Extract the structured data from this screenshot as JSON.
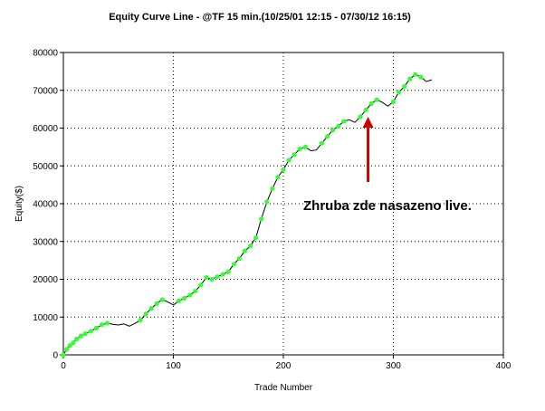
{
  "chart_data": {
    "type": "line",
    "title": "Equity Curve Line - @TF 15 min.(10/25/01 12:15 - 07/30/12 16:15)",
    "xlabel": "Trade Number",
    "ylabel": "Equity($)",
    "xlim": [
      0,
      400
    ],
    "ylim": [
      0,
      80000
    ],
    "x_ticks": [
      0,
      100,
      200,
      300,
      400
    ],
    "y_ticks": [
      0,
      10000,
      20000,
      30000,
      40000,
      50000,
      60000,
      70000,
      80000
    ],
    "x_tick_labels": [
      "0",
      "100",
      "200",
      "300",
      "400"
    ],
    "y_tick_labels": [
      "0",
      "10000",
      "20000",
      "30000",
      "40000",
      "50000",
      "60000",
      "70000",
      "80000"
    ],
    "grid": true,
    "line_color": "#000000",
    "marker_color": "#33ff33",
    "annotation": {
      "text": "Zhruba zde nasazeno live.",
      "arrow_color": "#cc0000",
      "points_to": {
        "x": 277,
        "y": 63000
      }
    },
    "series": [
      {
        "x": [
          0,
          3,
          6,
          9,
          12,
          16,
          20,
          25,
          30,
          35,
          40,
          45,
          50,
          55,
          60,
          65,
          70,
          75,
          80,
          85,
          90,
          95,
          100,
          105,
          110,
          115,
          120,
          125,
          130,
          135,
          140,
          145,
          150,
          155,
          160,
          165,
          170,
          175,
          180,
          185,
          190,
          195,
          200,
          205,
          210,
          215,
          220,
          225,
          230,
          235,
          240,
          245,
          250,
          255,
          260,
          265,
          270,
          275,
          280,
          285,
          290,
          295,
          300,
          305,
          310,
          315,
          320,
          325,
          330,
          335
        ],
        "y": [
          0,
          1500,
          2500,
          3200,
          4200,
          5000,
          5600,
          6300,
          7100,
          8000,
          8400,
          8100,
          7900,
          8200,
          7600,
          8300,
          9200,
          10800,
          12300,
          13600,
          14600,
          14000,
          13200,
          14300,
          15000,
          15800,
          16900,
          18500,
          20500,
          20000,
          20700,
          21300,
          22000,
          24000,
          25500,
          27500,
          28800,
          31000,
          36000,
          40500,
          44000,
          47000,
          49000,
          51500,
          53000,
          54500,
          55000,
          54000,
          54200,
          56000,
          57800,
          59500,
          60500,
          61800,
          62200,
          61500,
          63000,
          64800,
          66500,
          67500,
          66800,
          65800,
          67000,
          69500,
          71000,
          73000,
          74200,
          73500,
          72300,
          72800
        ],
        "highlight": [
          true,
          true,
          true,
          true,
          true,
          true,
          true,
          true,
          true,
          true,
          true,
          false,
          false,
          false,
          false,
          false,
          true,
          true,
          true,
          true,
          true,
          false,
          false,
          true,
          true,
          true,
          true,
          true,
          true,
          true,
          true,
          true,
          true,
          true,
          true,
          true,
          true,
          true,
          true,
          true,
          true,
          true,
          true,
          true,
          true,
          true,
          true,
          false,
          false,
          true,
          true,
          true,
          true,
          true,
          false,
          false,
          true,
          true,
          true,
          true,
          false,
          false,
          true,
          true,
          true,
          true,
          true,
          true,
          false,
          false
        ]
      }
    ]
  }
}
